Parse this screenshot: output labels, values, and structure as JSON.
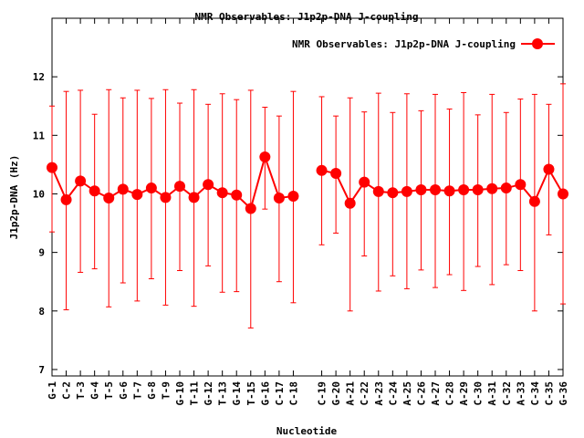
{
  "chart_data": {
    "type": "line",
    "title": "NMR Observables: J1p2p-DNA J-coupling",
    "xlabel": "Nucleotide",
    "ylabel": "J1p2p-DNA (Hz)",
    "ylim": [
      6.89,
      13.0
    ],
    "yticks": [
      7,
      8,
      9,
      10,
      11,
      12
    ],
    "legend": {
      "label": "NMR Observables: J1p2p-DNA J-coupling",
      "placement": "top-right"
    },
    "color": "#ff0000",
    "categories": [
      "G-1",
      "C-2",
      "T-3",
      "G-4",
      "T-5",
      "G-6",
      "T-7",
      "G-8",
      "T-9",
      "G-10",
      "T-11",
      "G-12",
      "T-13",
      "G-14",
      "T-15",
      "G-16",
      "C-17",
      "C-18",
      "C-19",
      "G-20",
      "A-21",
      "C-22",
      "A-23",
      "C-24",
      "A-25",
      "C-26",
      "A-27",
      "C-28",
      "A-29",
      "C-30",
      "A-31",
      "C-32",
      "A-33",
      "C-34",
      "C-35",
      "G-36"
    ],
    "x": [
      1,
      2,
      3,
      4,
      5,
      6,
      7,
      8,
      9,
      10,
      11,
      12,
      13,
      14,
      15,
      16,
      17,
      18,
      20,
      21,
      22,
      23,
      24,
      25,
      26,
      27,
      28,
      29,
      30,
      31,
      32,
      33,
      34,
      35,
      36,
      37
    ],
    "xlim": [
      1,
      37
    ],
    "segments": [
      [
        0,
        17
      ],
      [
        18,
        35
      ]
    ],
    "values": [
      10.45,
      9.9,
      10.22,
      10.05,
      9.93,
      10.08,
      9.99,
      10.1,
      9.94,
      10.13,
      9.94,
      10.16,
      10.02,
      9.98,
      9.75,
      10.63,
      9.93,
      9.96,
      10.4,
      10.35,
      9.84,
      10.2,
      10.04,
      10.02,
      10.04,
      10.07,
      10.07,
      10.05,
      10.07,
      10.07,
      10.09,
      10.1,
      10.16,
      9.87,
      10.42,
      10.0
    ],
    "err_low": [
      9.35,
      8.02,
      8.66,
      8.72,
      8.07,
      8.48,
      8.17,
      8.55,
      8.1,
      8.69,
      8.08,
      8.77,
      8.32,
      8.33,
      7.71,
      9.74,
      8.5,
      8.14,
      9.13,
      9.33,
      8.0,
      8.94,
      8.34,
      8.6,
      8.38,
      8.7,
      8.4,
      8.62,
      8.35,
      8.76,
      8.45,
      8.79,
      8.69,
      8.0,
      9.3,
      8.12
    ],
    "err_high": [
      11.5,
      11.75,
      11.77,
      11.36,
      11.78,
      11.64,
      11.77,
      11.63,
      11.78,
      11.55,
      11.78,
      11.53,
      11.71,
      11.61,
      11.77,
      11.48,
      11.33,
      11.75,
      11.66,
      11.33,
      11.64,
      11.4,
      11.72,
      11.39,
      11.71,
      11.42,
      11.7,
      11.45,
      11.73,
      11.35,
      11.7,
      11.39,
      11.62,
      11.7,
      11.53,
      11.88
    ]
  }
}
